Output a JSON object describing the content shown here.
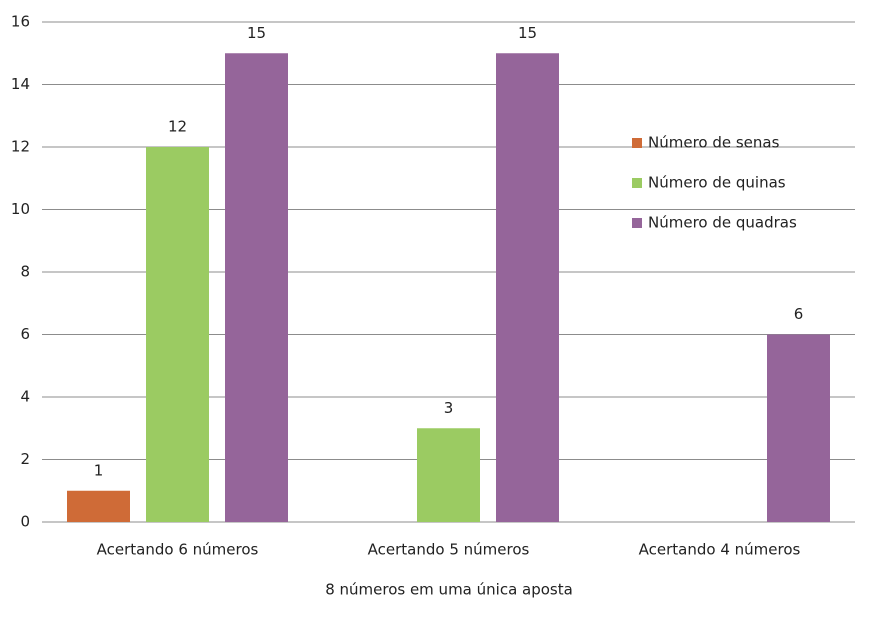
{
  "chart_data": {
    "type": "bar",
    "x_label": "8 números em uma única aposta",
    "categories": [
      "Acertando 6 números",
      "Acertando 5 números",
      "Acertando 4 números"
    ],
    "series": [
      {
        "name": "Número de senas",
        "color": "#cf6b37",
        "values": [
          1,
          null,
          null
        ]
      },
      {
        "name": "Número de quinas",
        "color": "#9bcb62",
        "values": [
          12,
          3,
          null
        ]
      },
      {
        "name": "Número de quadras",
        "color": "#95659a",
        "values": [
          15,
          15,
          6
        ]
      }
    ],
    "ylim": [
      0,
      16
    ],
    "yticks": [
      0,
      2,
      4,
      6,
      8,
      10,
      12,
      14,
      16
    ],
    "grid": true,
    "legend": "right"
  }
}
